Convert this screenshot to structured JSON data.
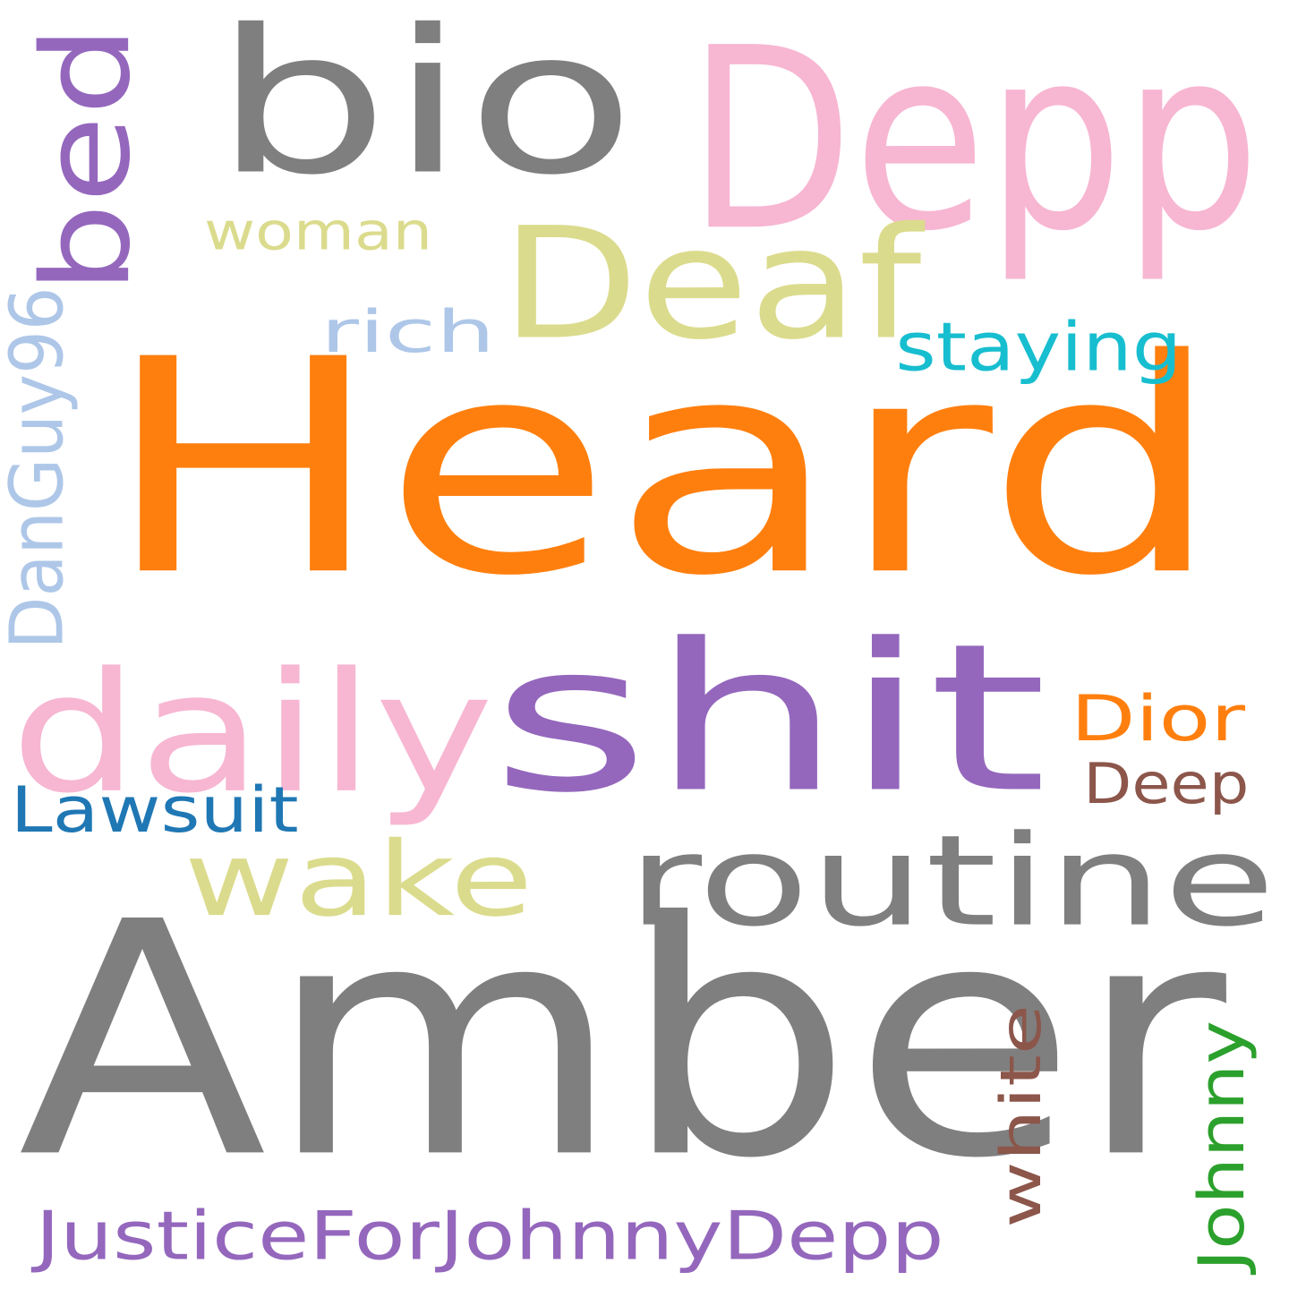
{
  "words": [
    {
      "id": "heard",
      "text": "Heard",
      "color": "#ff7f0e"
    },
    {
      "id": "amber",
      "text": "Amber",
      "color": "#7f7f7f"
    },
    {
      "id": "shit",
      "text": "shit",
      "color": "#9467bd"
    },
    {
      "id": "bio",
      "text": "bio",
      "color": "#7f7f7f"
    },
    {
      "id": "depp",
      "text": "Depp",
      "color": "#f7b6d2"
    },
    {
      "id": "deaf",
      "text": "Deaf",
      "color": "#dbdb8d"
    },
    {
      "id": "daily",
      "text": "daily",
      "color": "#f7b6d2"
    },
    {
      "id": "routine",
      "text": "routine",
      "color": "#7f7f7f"
    },
    {
      "id": "wake",
      "text": "wake",
      "color": "#dbdb8d"
    },
    {
      "id": "bed",
      "text": "bed",
      "color": "#9467bd"
    },
    {
      "id": "justice",
      "text": "JusticeForJohnnyDepp",
      "color": "#9467bd"
    },
    {
      "id": "woman",
      "text": "woman",
      "color": "#dbdb8d"
    },
    {
      "id": "rich",
      "text": "rich",
      "color": "#aec7e8"
    },
    {
      "id": "staying",
      "text": "staying",
      "color": "#17becf"
    },
    {
      "id": "danguy",
      "text": "DanGuy96",
      "color": "#aec7e8"
    },
    {
      "id": "dior",
      "text": "Dior",
      "color": "#ff7f0e"
    },
    {
      "id": "deep",
      "text": "Deep",
      "color": "#8c564b"
    },
    {
      "id": "lawsuit",
      "text": "Lawsuit",
      "color": "#1f77b4"
    },
    {
      "id": "white",
      "text": "white",
      "color": "#8c564b"
    },
    {
      "id": "johnny",
      "text": "Johnny",
      "color": "#2ca02c"
    }
  ]
}
